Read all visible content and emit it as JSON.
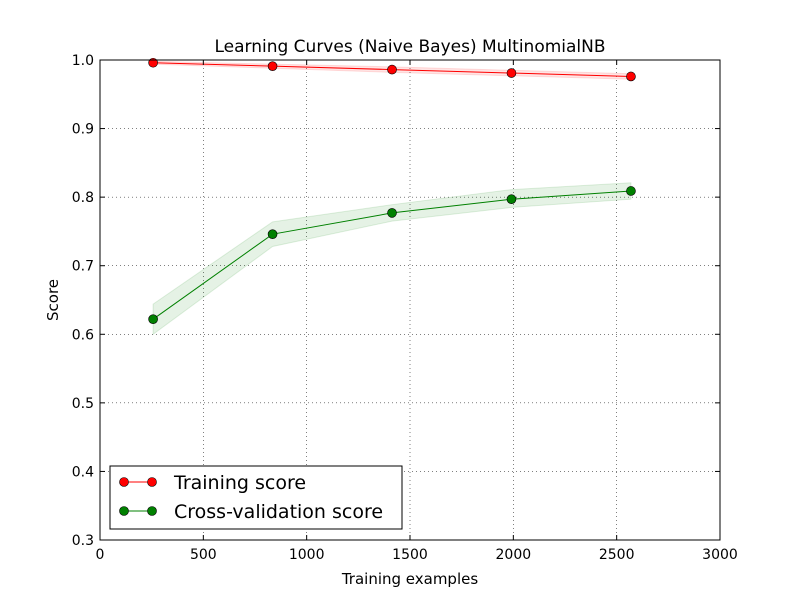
{
  "chart_data": {
    "type": "line",
    "title": "Learning Curves (Naive Bayes) MultinomialNB",
    "xlabel": "Training examples",
    "ylabel": "Score",
    "xlim": [
      0,
      3000
    ],
    "ylim": [
      0.3,
      1.0
    ],
    "grid": true,
    "legend_position": "lower-left",
    "x_ticks": [
      "0",
      "500",
      "1000",
      "1500",
      "2000",
      "2500",
      "3000"
    ],
    "y_ticks": [
      "0.3",
      "0.4",
      "0.5",
      "0.6",
      "0.7",
      "0.8",
      "0.9",
      "1.0"
    ],
    "x": [
      257,
      835,
      1413,
      1991,
      2569
    ],
    "series": [
      {
        "name": "Training score",
        "color": "#ff0000",
        "values": [
          0.996,
          0.991,
          0.986,
          0.981,
          0.976
        ],
        "band_lower": [
          0.994,
          0.988,
          0.982,
          0.977,
          0.972
        ],
        "band_upper": [
          0.998,
          0.994,
          0.99,
          0.985,
          0.98
        ]
      },
      {
        "name": "Cross-validation score",
        "color": "#008000",
        "values": [
          0.622,
          0.746,
          0.777,
          0.797,
          0.809
        ],
        "band_lower": [
          0.6,
          0.728,
          0.765,
          0.785,
          0.797
        ],
        "band_upper": [
          0.644,
          0.764,
          0.789,
          0.811,
          0.821
        ]
      }
    ]
  }
}
